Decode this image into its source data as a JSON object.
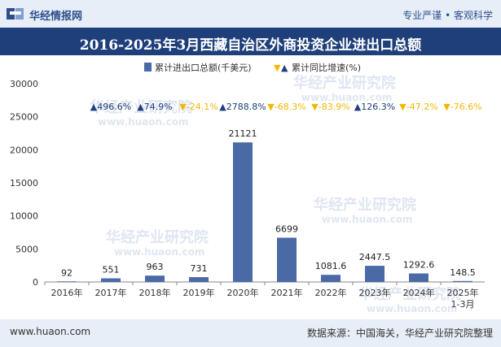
{
  "header": {
    "brand": "华经情报网",
    "slogan": "专业严谨 • 客观科学"
  },
  "footer": {
    "site": "www.huaon.com",
    "source": "数据来源：中国海关，华经产业研究院整理"
  },
  "watermark": {
    "text": "华经产业研究院",
    "url": "www.huaon.com"
  },
  "colors": {
    "bar": "#4a6aa5",
    "up": "#1f3f7a",
    "down": "#f2b705"
  },
  "chart_data": {
    "type": "bar",
    "title": "2016-2025年3月西藏自治区外商投资企业进出口总额",
    "legend": {
      "placement": "top",
      "bar_label": "累计进出口总额(千美元)",
      "growth_label": "累计同比增速(%)"
    },
    "categories": [
      "2016年",
      "2017年",
      "2018年",
      "2019年",
      "2020年",
      "2021年",
      "2022年",
      "2023年",
      "2024年",
      "2025年\n1-3月"
    ],
    "values": [
      92,
      551,
      963,
      731,
      21121,
      6699,
      1081.6,
      2447.5,
      1292.6,
      148.5
    ],
    "value_labels": [
      "92",
      "551",
      "963",
      "731",
      "21121",
      "6699",
      "1081.6",
      "2447.5",
      "1292.6",
      "148.5"
    ],
    "growth": [
      null,
      {
        "text": "496.6%",
        "dir": "up"
      },
      {
        "text": "74.9%",
        "dir": "up"
      },
      {
        "text": "-24.1%",
        "dir": "down"
      },
      {
        "text": "2788.8%",
        "dir": "up"
      },
      {
        "text": "-68.3%",
        "dir": "down"
      },
      {
        "text": "-83.9%",
        "dir": "down"
      },
      {
        "text": "126.3%",
        "dir": "up"
      },
      {
        "text": "-47.2%",
        "dir": "down"
      },
      {
        "text": "-76.6%",
        "dir": "down"
      }
    ],
    "ylim": [
      0,
      30000
    ],
    "yticks": [
      0,
      5000,
      10000,
      15000,
      20000,
      25000,
      30000
    ],
    "grid": false
  }
}
